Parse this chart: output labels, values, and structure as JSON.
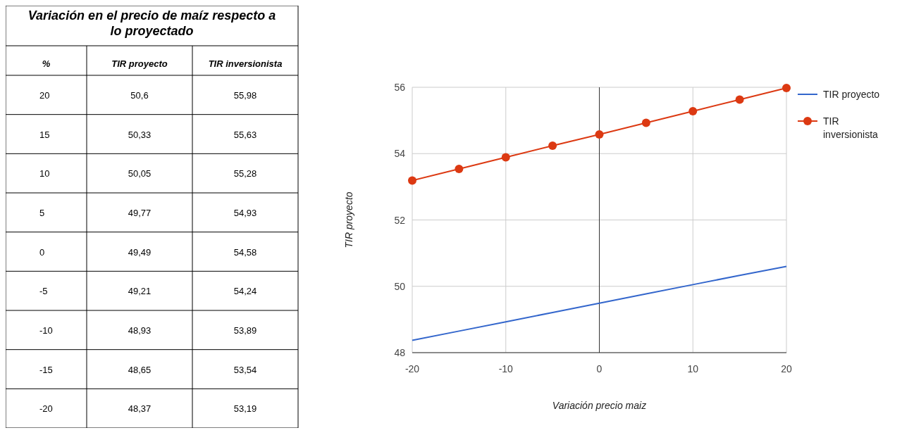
{
  "chart_data": [
    {
      "type": "heatmap",
      "title": "Variación en el precio de maíz respecto a lo proyectado",
      "ylabel": "%",
      "categories": [
        "TIR proyecto",
        "TIR inversionista"
      ],
      "y_categories": [
        "20",
        "15",
        "10",
        "5",
        "0",
        "-5",
        "-10",
        "-15",
        "-20"
      ],
      "cells": [
        [
          50.6,
          55.98
        ],
        [
          50.33,
          55.63
        ],
        [
          50.05,
          55.28
        ],
        [
          49.77,
          54.93
        ],
        [
          49.49,
          54.58
        ],
        [
          49.21,
          54.24
        ],
        [
          48.93,
          53.89
        ],
        [
          48.65,
          53.54
        ],
        [
          48.37,
          53.19
        ]
      ],
      "cell_labels": [
        [
          "50,6",
          "55,98"
        ],
        [
          "50,33",
          "55,63"
        ],
        [
          "50,05",
          "55,28"
        ],
        [
          "49,77",
          "54,93"
        ],
        [
          "49,49",
          "54,58"
        ],
        [
          "49,21",
          "54,24"
        ],
        [
          "48,93",
          "53,89"
        ],
        [
          "48,65",
          "53,54"
        ],
        [
          "48,37",
          "53,19"
        ]
      ]
    },
    {
      "type": "line",
      "xlabel": "Variación precio maiz",
      "ylabel": "TIR proyecto",
      "x": [
        -20,
        -15,
        -10,
        -5,
        0,
        5,
        10,
        15,
        20
      ],
      "series": [
        {
          "name": "TIR proyecto",
          "color": "#3366cc",
          "marker": "none",
          "values": [
            48.37,
            48.65,
            48.93,
            49.21,
            49.49,
            49.77,
            50.05,
            50.33,
            50.6
          ]
        },
        {
          "name": "TIR inversionista",
          "color": "#dc3912",
          "marker": "circle",
          "values": [
            53.19,
            53.54,
            53.89,
            54.24,
            54.58,
            54.93,
            55.28,
            55.63,
            55.98
          ]
        }
      ],
      "xlim": [
        -20,
        20
      ],
      "xticks": [
        -20,
        -10,
        0,
        10,
        20
      ],
      "ylim": [
        48,
        56
      ],
      "yticks": [
        48,
        50,
        52,
        54,
        56
      ],
      "grid": true,
      "legend": "right",
      "ref_lines": [
        {
          "axis": "x",
          "value": 0,
          "color": "#333333"
        }
      ]
    }
  ]
}
